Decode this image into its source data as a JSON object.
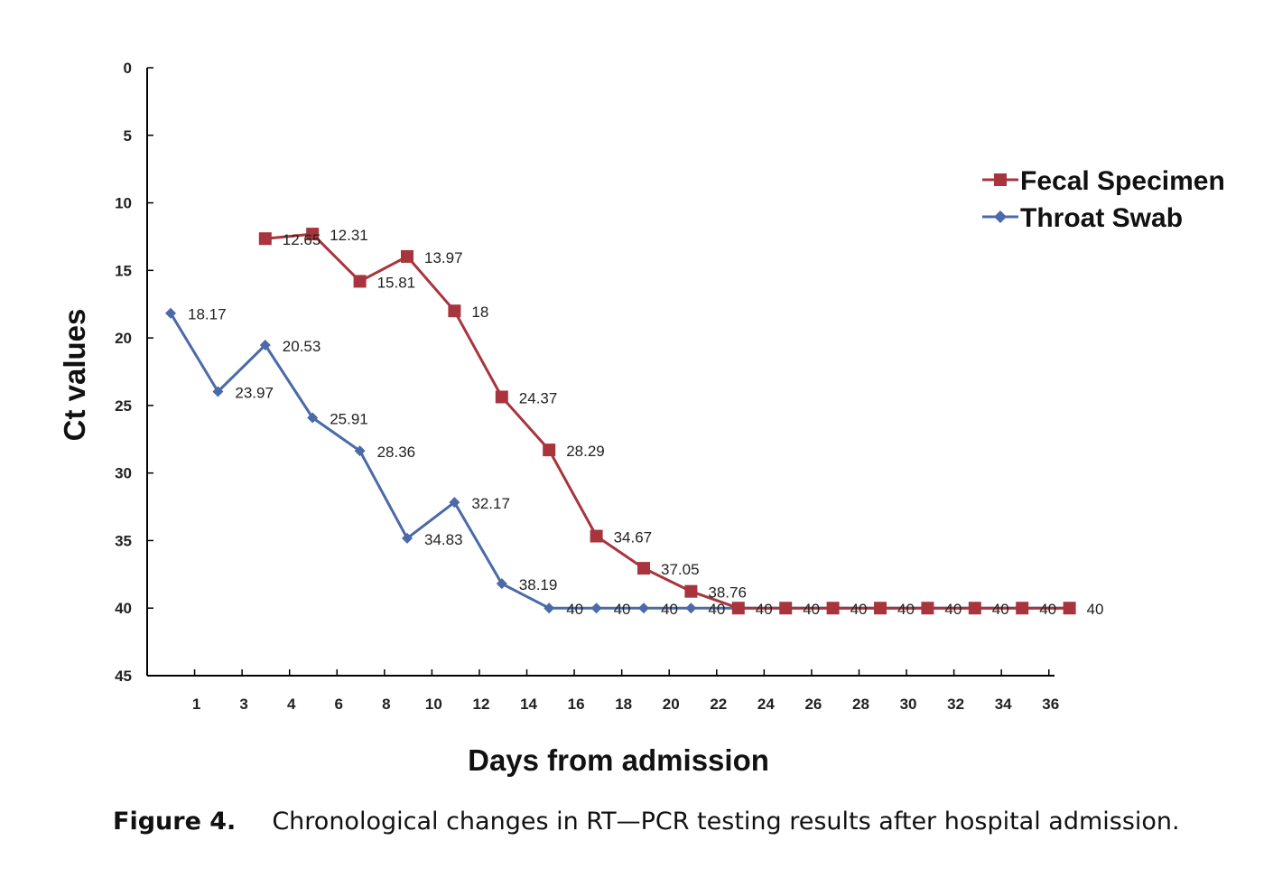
{
  "caption": {
    "label": "Figure 4.",
    "text": "Chronological changes in RT—PCR testing results after hospital admission."
  },
  "colors": {
    "fecal": "#a8343d",
    "throat": "#4a6aa8",
    "axis": "#000000"
  },
  "chart_data": {
    "type": "line",
    "title": "",
    "xlabel": "Days from admission",
    "ylabel": "Ct values",
    "ylim": [
      0,
      45
    ],
    "y_inverted": true,
    "y_ticks": [
      0,
      5,
      10,
      15,
      20,
      25,
      30,
      35,
      40,
      45
    ],
    "x_tick_labels": [
      "1",
      "3",
      "4",
      "6",
      "8",
      "10",
      "12",
      "14",
      "16",
      "18",
      "20",
      "22",
      "24",
      "26",
      "28",
      "30",
      "32",
      "34",
      "36"
    ],
    "grid": false,
    "legend_position": "right",
    "series": [
      {
        "name": "Fecal Specimen",
        "marker": "square",
        "x": [
          4,
          6,
          8,
          10,
          12,
          14,
          16,
          18,
          20,
          22,
          24,
          26,
          28,
          30,
          32,
          34,
          36,
          38
        ],
        "values": [
          12.65,
          12.31,
          15.81,
          13.97,
          18,
          24.37,
          28.29,
          34.67,
          37.05,
          38.76,
          40,
          40,
          40,
          40,
          40,
          40,
          40,
          40
        ],
        "labels": [
          "12.65",
          "12.31",
          "15.81",
          "13.97",
          "18",
          "24.37",
          "28.29",
          "34.67",
          "37.05",
          "38.76",
          "40",
          "40",
          "40",
          "40",
          "40",
          "40",
          "40",
          "40"
        ]
      },
      {
        "name": "Throat Swab",
        "marker": "diamond",
        "x": [
          0,
          2,
          4,
          6,
          8,
          10,
          12,
          14,
          16,
          18,
          20,
          22,
          24,
          26,
          28,
          30,
          32,
          34,
          36,
          38
        ],
        "values": [
          18.17,
          23.97,
          20.53,
          25.91,
          28.36,
          34.83,
          32.17,
          38.19,
          40,
          40,
          40,
          40,
          40,
          40,
          40,
          40,
          40,
          40,
          40,
          40
        ],
        "labels": [
          "18.17",
          "23.97",
          "20.53",
          "25.91",
          "28.36",
          "34.83",
          "32.17",
          "38.19",
          "40",
          "40",
          "40",
          "40",
          "",
          "",
          "",
          "",
          "",
          "",
          "",
          ""
        ]
      }
    ]
  }
}
